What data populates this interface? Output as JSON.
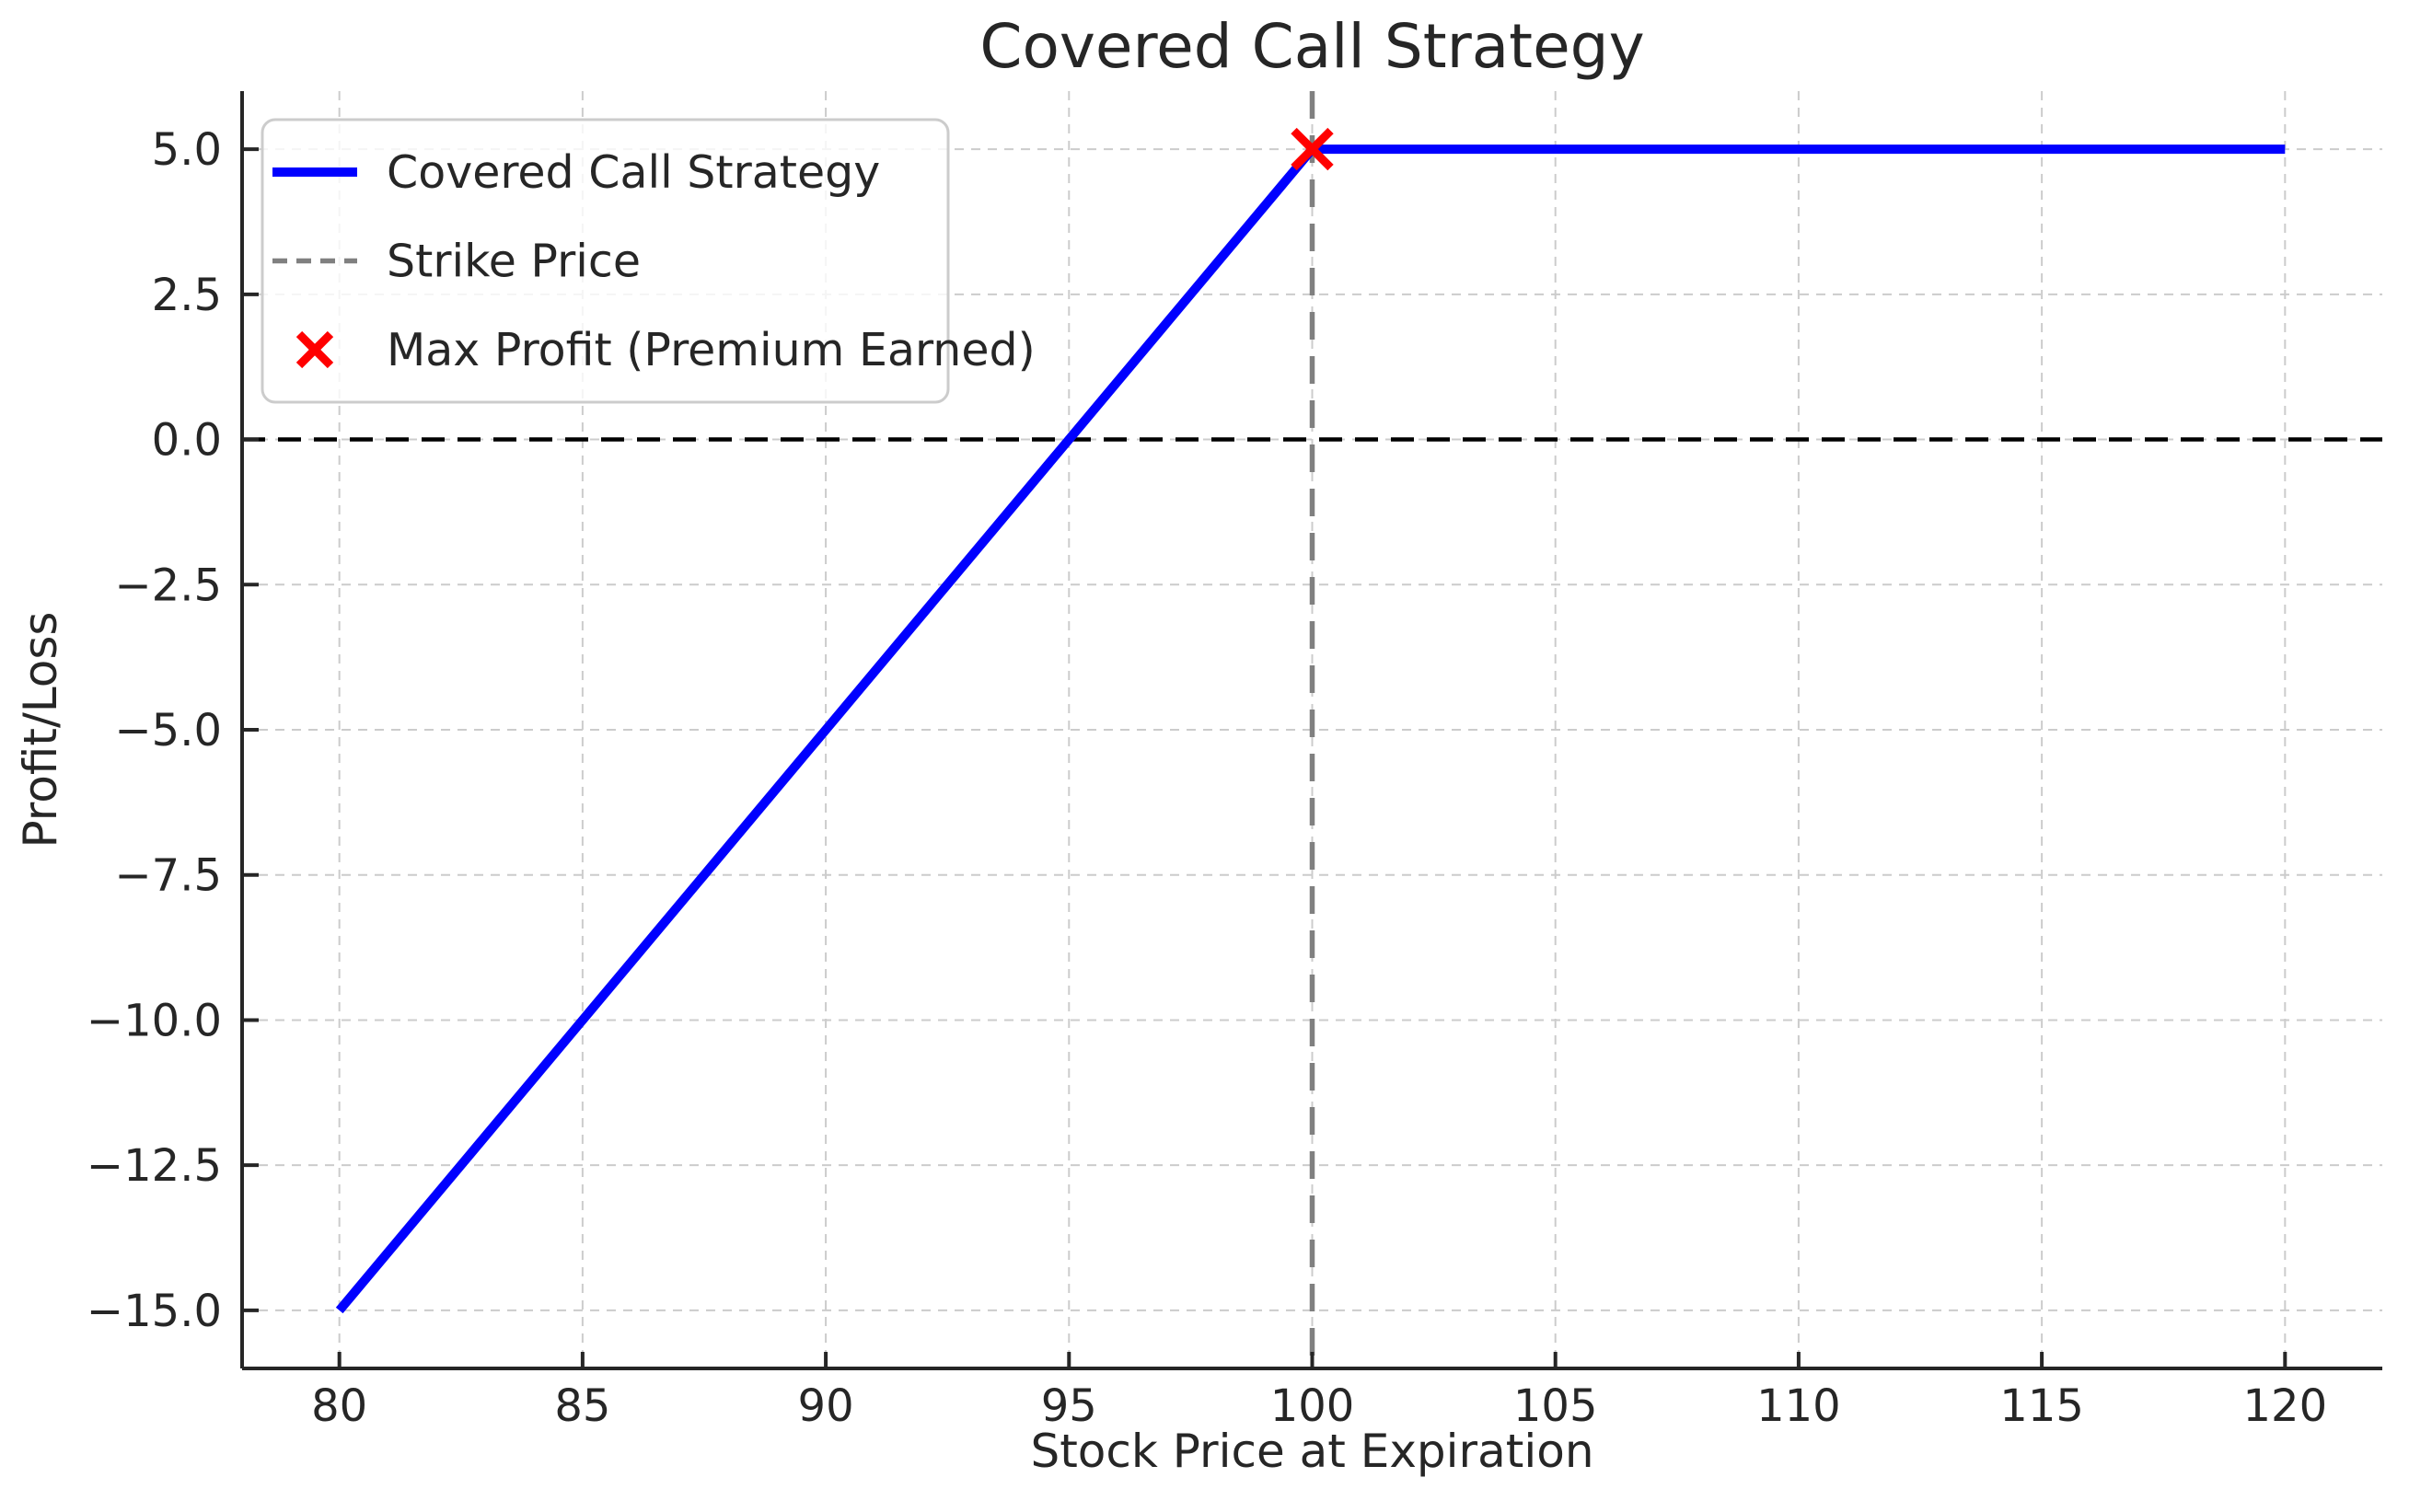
{
  "figure": {
    "background": "#ffffff"
  },
  "chart_data": {
    "type": "line",
    "title": "Covered Call Strategy",
    "xlabel": "Stock Price at Expiration",
    "ylabel": "Profit/Loss",
    "xlim": [
      78,
      122
    ],
    "ylim": [
      -16,
      6
    ],
    "x_ticks": [
      80,
      85,
      90,
      95,
      100,
      105,
      110,
      115,
      120
    ],
    "x_tick_labels": [
      "80",
      "85",
      "90",
      "95",
      "100",
      "105",
      "110",
      "115",
      "120"
    ],
    "y_ticks": [
      5.0,
      2.5,
      0.0,
      -2.5,
      -5.0,
      -7.5,
      -10.0,
      -12.5,
      -15.0
    ],
    "y_tick_labels": [
      "5.0",
      "2.5",
      "0.0",
      "−2.5",
      "−5.0",
      "−7.5",
      "−10.0",
      "−12.5",
      "−15.0"
    ],
    "grid": true,
    "grid_style": "dashed",
    "legend_position": "upper left",
    "series": [
      {
        "name": "Covered Call Strategy",
        "color": "#0000ff",
        "style": "solid",
        "x": [
          80,
          95,
          100,
          120
        ],
        "y": [
          -15,
          0,
          5,
          5
        ]
      }
    ],
    "reference_lines": [
      {
        "name": "Strike Price",
        "orientation": "vertical",
        "x": 100,
        "color": "#808080",
        "style": "dashed"
      },
      {
        "name": "Zero Profit/Loss",
        "orientation": "horizontal",
        "y": 0,
        "color": "#000000",
        "style": "dashed"
      }
    ],
    "markers": [
      {
        "name": "Max Profit (Premium Earned)",
        "x": 100,
        "y": 5,
        "shape": "x",
        "color": "#ff0000"
      }
    ],
    "legend": [
      {
        "label": "Covered Call Strategy",
        "swatch": "solid-line",
        "color": "#0000ff"
      },
      {
        "label": "Strike Price",
        "swatch": "dashed-line",
        "color": "#808080"
      },
      {
        "label": "Max Profit (Premium Earned)",
        "swatch": "x-marker",
        "color": "#ff0000"
      }
    ],
    "key_points": {
      "strike_price": 100,
      "breakeven_stock_price": 95,
      "max_profit": 5.0,
      "profit_at_lowest_shown_price": -15.0
    }
  },
  "colors": {
    "text": "#262626",
    "spine": "#262626",
    "grid": "#cccccc",
    "legend_border": "#cccccc",
    "series_blue": "#0000ff",
    "strike_gray": "#808080",
    "zero_line_black": "#000000",
    "marker_red": "#ff0000"
  }
}
